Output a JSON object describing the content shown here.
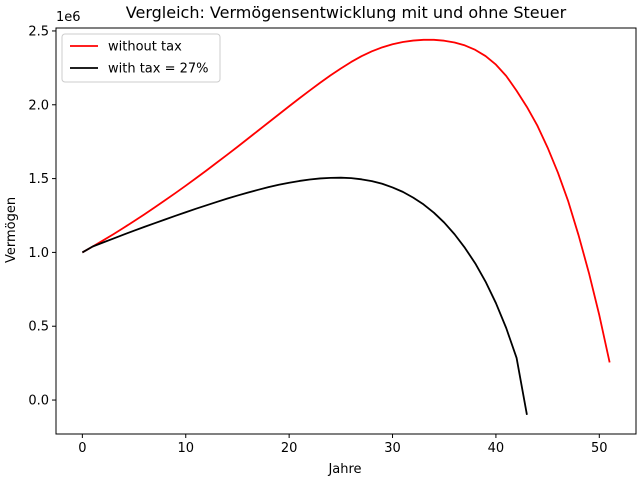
{
  "chart_data": {
    "type": "line",
    "title": "Vergleich: Vermögensentwicklung mit und ohne Steuer",
    "xlabel": "Jahre",
    "ylabel": "Vermögen",
    "y_offset_label": "1e6",
    "xlim": [
      -2.55,
      53.55
    ],
    "ylim": [
      -230000.0,
      2520000.0
    ],
    "x_ticks": [
      0,
      10,
      20,
      30,
      40,
      50
    ],
    "x_tick_labels": [
      "0",
      "10",
      "20",
      "30",
      "40",
      "50"
    ],
    "y_ticks": [
      0,
      500000,
      1000000,
      1500000,
      2000000,
      2500000
    ],
    "y_tick_labels": [
      "0.0",
      "0.5",
      "1.0",
      "1.5",
      "2.0",
      "2.5"
    ],
    "grid": false,
    "legend_position": "top-left",
    "series": [
      {
        "name": "without tax",
        "color": "#ff0000",
        "x": [
          0,
          1,
          2,
          3,
          4,
          5,
          6,
          7,
          8,
          9,
          10,
          11,
          12,
          13,
          14,
          15,
          16,
          17,
          18,
          19,
          20,
          21,
          22,
          23,
          24,
          25,
          26,
          27,
          28,
          29,
          30,
          31,
          32,
          33,
          34,
          35,
          36,
          37,
          38,
          39,
          40,
          41,
          42,
          43,
          44,
          45,
          46,
          47,
          48,
          49,
          50,
          51
        ],
        "y": [
          1000000,
          1040000,
          1081000,
          1123000,
          1167000,
          1212000,
          1258000,
          1305000,
          1353000,
          1402000,
          1452000,
          1503000,
          1555000,
          1608000,
          1661000,
          1715000,
          1770000,
          1825000,
          1880000,
          1935000,
          1990000,
          2044000,
          2097000,
          2149000,
          2199000,
          2246000,
          2290000,
          2329000,
          2362000,
          2389000,
          2410000,
          2425000,
          2435000,
          2440000,
          2440000,
          2434000,
          2422000,
          2402000,
          2372000,
          2330000,
          2272000,
          2195000,
          2095000,
          1985000,
          1860000,
          1710000,
          1540000,
          1345000,
          1115000,
          860000,
          575000,
          255000
        ]
      },
      {
        "name": "with tax = 27%",
        "color": "#000000",
        "x": [
          0,
          1,
          2,
          3,
          4,
          5,
          6,
          7,
          8,
          9,
          10,
          11,
          12,
          13,
          14,
          15,
          16,
          17,
          18,
          19,
          20,
          21,
          22,
          23,
          24,
          25,
          26,
          27,
          28,
          29,
          30,
          31,
          32,
          33,
          34,
          35,
          36,
          37,
          38,
          39,
          40,
          41,
          42,
          43
        ],
        "y": [
          1000000,
          1040000,
          1067000,
          1094000,
          1121000,
          1147000,
          1173000,
          1198000,
          1223000,
          1248000,
          1272000,
          1296000,
          1319000,
          1342000,
          1364000,
          1385000,
          1405000,
          1424000,
          1442000,
          1458000,
          1472000,
          1484000,
          1494000,
          1501000,
          1505000,
          1506000,
          1503000,
          1495000,
          1483000,
          1465000,
          1440000,
          1410000,
          1371000,
          1325000,
          1269000,
          1202000,
          1123000,
          1031000,
          926000,
          802000,
          657000,
          487000,
          285000,
          -100000
        ]
      }
    ]
  }
}
